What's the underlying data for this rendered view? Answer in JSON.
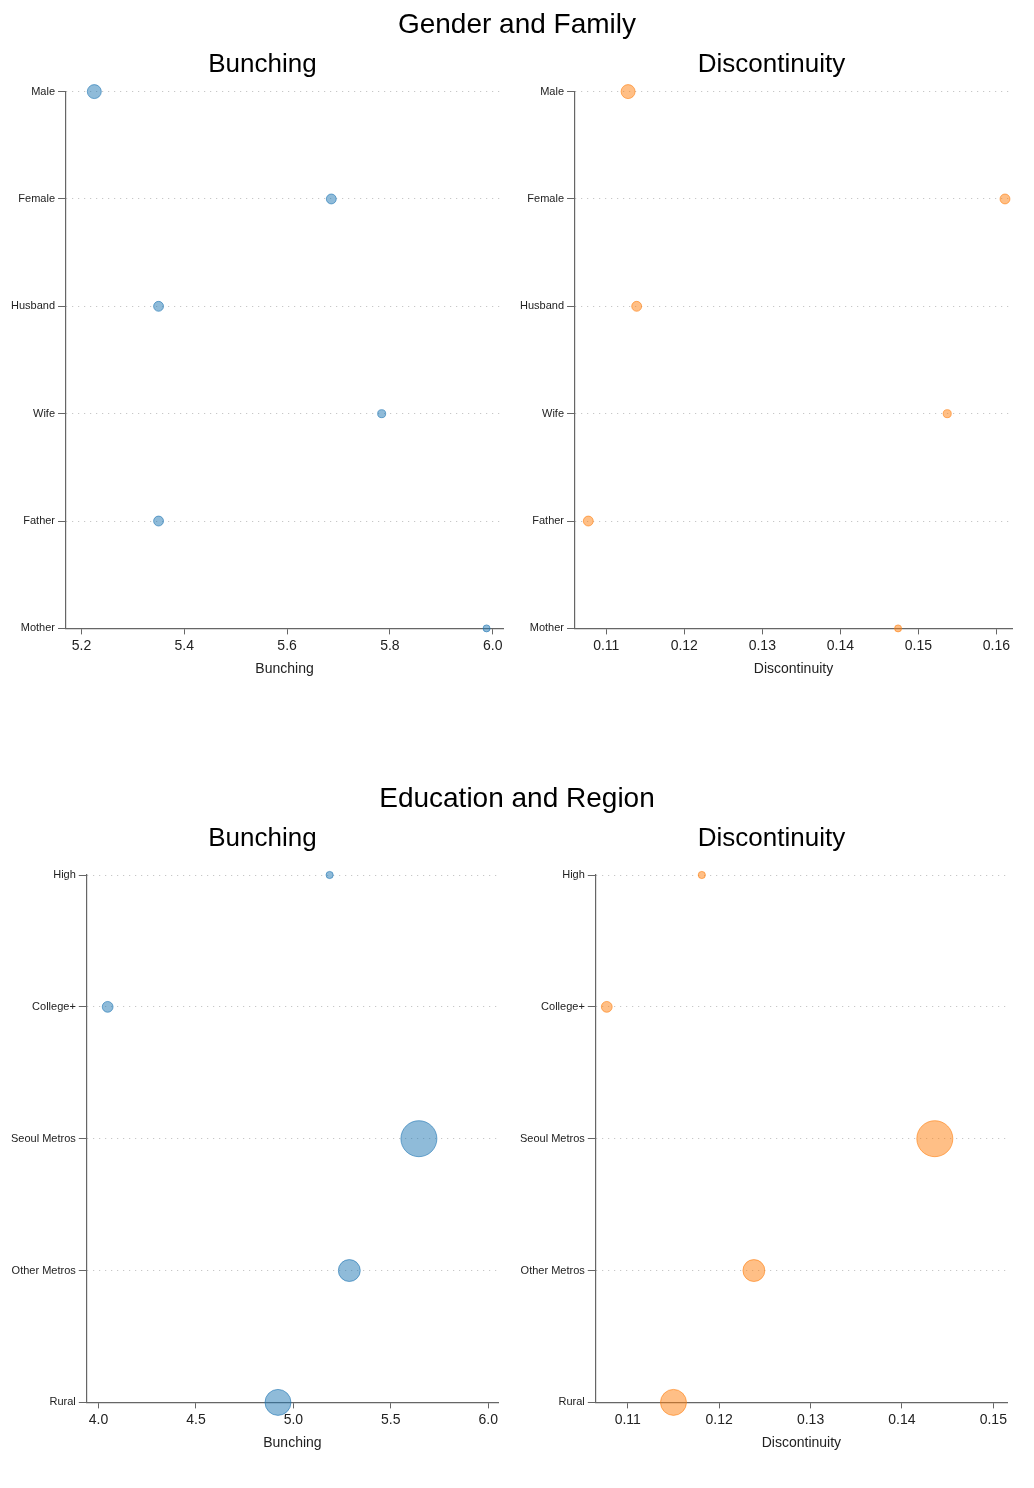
{
  "chart_data": [
    {
      "type": "bubble",
      "orientation": "horizontal",
      "title": "Bunching",
      "xlabel": "Bunching",
      "annotations": [
        "Gender and Family"
      ],
      "categories": [
        "Male",
        "Female",
        "Husband",
        "Wife",
        "Father",
        "Mother"
      ],
      "values": [
        5.225,
        5.686,
        5.35,
        5.784,
        5.35,
        5.988
      ],
      "sizes": [
        1,
        0.5,
        0.5,
        0.33,
        0.5,
        0.25
      ],
      "color": "#1f77b4",
      "xlim": [
        5.17,
        6.02
      ],
      "xticks": [
        5.2,
        5.4,
        5.6,
        5.8,
        {
          "value": 6,
          "label": "6.0"
        }
      ],
      "grid": "y",
      "legend": false
    },
    {
      "type": "bubble",
      "orientation": "horizontal",
      "title": "Discontinuity",
      "xlabel": "Discontinuity",
      "categories": [
        "Male",
        "Female",
        "Husband",
        "Wife",
        "Father",
        "Mother"
      ],
      "values": [
        0.1128,
        0.1611,
        0.1139,
        0.1537,
        0.1077,
        0.1474
      ],
      "sizes": [
        1,
        0.5,
        0.5,
        0.33,
        0.5,
        0.25
      ],
      "color": "#ff7f0e",
      "xlim": [
        0.106,
        0.162
      ],
      "xticks": [
        0.11,
        0.12,
        0.13,
        0.14,
        0.15,
        0.16
      ],
      "grid": "y",
      "legend": false
    },
    {
      "type": "bubble",
      "orientation": "horizontal",
      "title": "Bunching",
      "xlabel": "Bunching",
      "annotations": [
        "Education and Region"
      ],
      "categories": [
        "High",
        "College+",
        "Seoul Metros",
        "Other Metros",
        "Rural"
      ],
      "values": [
        5.186,
        4.047,
        5.644,
        5.287,
        4.921
      ],
      "sizes": [
        0.04,
        0.09,
        1,
        0.37,
        0.52
      ],
      "color": "#1f77b4",
      "xlim": [
        3.94,
        6.05
      ],
      "xticks": [
        {
          "value": 4,
          "label": "4.0"
        },
        4.5,
        {
          "value": 5,
          "label": "5.0"
        },
        5.5,
        {
          "value": 6,
          "label": "6.0"
        }
      ],
      "grid": "y",
      "legend": false
    },
    {
      "type": "bubble",
      "orientation": "horizontal",
      "title": "Discontinuity",
      "xlabel": "Discontinuity",
      "categories": [
        "High",
        "College+",
        "Seoul Metros",
        "Other Metros",
        "Rural"
      ],
      "values": [
        0.1181,
        0.1077,
        0.1436,
        0.1238,
        0.115
      ],
      "sizes": [
        0.04,
        0.09,
        1,
        0.37,
        0.52
      ],
      "color": "#ff7f0e",
      "xlim": [
        0.1065,
        0.1515
      ],
      "xticks": [
        0.11,
        0.12,
        0.13,
        0.14,
        0.15
      ],
      "grid": "y",
      "legend": false
    }
  ]
}
